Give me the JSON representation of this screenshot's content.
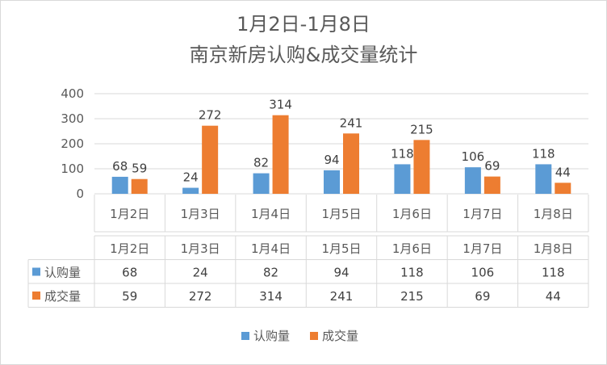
{
  "chart_data": {
    "type": "bar",
    "title": [
      "1月2日-1月8日",
      "南京新房认购&成交量统计"
    ],
    "categories": [
      "1月2日",
      "1月3日",
      "1月4日",
      "1月5日",
      "1月6日",
      "1月7日",
      "1月8日"
    ],
    "series": [
      {
        "name": "认购量",
        "color": "#5b9bd5",
        "values": [
          68,
          24,
          82,
          94,
          118,
          106,
          118
        ]
      },
      {
        "name": "成交量",
        "color": "#ed7d31",
        "values": [
          59,
          272,
          314,
          241,
          215,
          69,
          44
        ]
      }
    ],
    "y_ticks": [
      "0",
      "100",
      "200",
      "300",
      "400"
    ],
    "ylim": [
      0,
      400
    ],
    "data_labels": true,
    "data_table": true,
    "legend_position": "bottom"
  }
}
